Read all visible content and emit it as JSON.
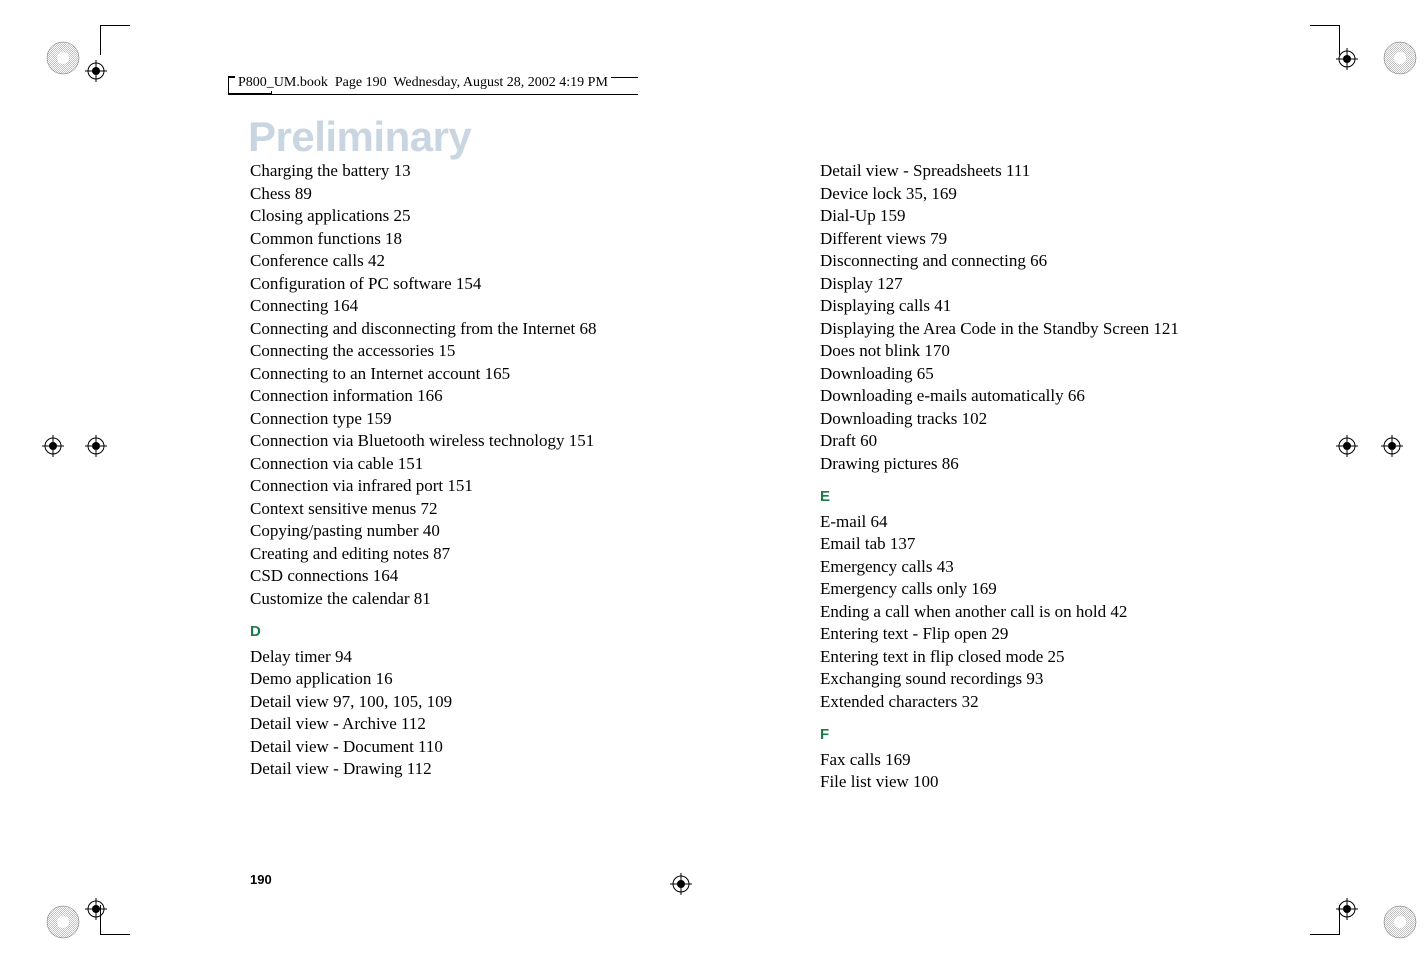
{
  "header": {
    "filename": "P800_UM.book",
    "page_info": "Page 190",
    "datetime": "Wednesday, August 28, 2002  4:19 PM"
  },
  "watermark": "Preliminary",
  "page_number": "190",
  "columns": {
    "left": {
      "entries_before_D": [
        {
          "label": "Charging the battery",
          "page": "13"
        },
        {
          "label": "Chess",
          "page": "89"
        },
        {
          "label": "Closing applications",
          "page": "25"
        },
        {
          "label": "Common functions",
          "page": "18"
        },
        {
          "label": "Conference calls",
          "page": "42"
        },
        {
          "label": "Configuration of PC software",
          "page": "154"
        },
        {
          "label": "Connecting",
          "page": "164"
        },
        {
          "label": "Connecting and disconnecting from the Internet",
          "page": "68"
        },
        {
          "label": "Connecting the accessories",
          "page": "15"
        },
        {
          "label": "Connecting to an Internet account",
          "page": "165"
        },
        {
          "label": "Connection information",
          "page": "166"
        },
        {
          "label": "Connection type",
          "page": "159"
        },
        {
          "label": "Connection via Bluetooth wireless technology",
          "page": "151"
        },
        {
          "label": "Connection via cable",
          "page": "151"
        },
        {
          "label": "Connection via infrared port",
          "page": "151"
        },
        {
          "label": "Context sensitive menus",
          "page": "72"
        },
        {
          "label": "Copying/pasting number",
          "page": "40"
        },
        {
          "label": "Creating and editing notes",
          "page": "87"
        },
        {
          "label": "CSD connections",
          "page": "164"
        },
        {
          "label": "Customize the calendar",
          "page": "81"
        }
      ],
      "section_D": "D",
      "entries_D": [
        {
          "label": "Delay timer",
          "page": "94"
        },
        {
          "label": "Demo application",
          "page": "16"
        },
        {
          "label": "Detail view",
          "page": "97, 100, 105, 109"
        },
        {
          "label": "Detail view - Archive",
          "page": "112"
        },
        {
          "label": "Detail view - Document",
          "page": "110"
        },
        {
          "label": "Detail view - Drawing",
          "page": "112"
        }
      ]
    },
    "right": {
      "entries_before_E": [
        {
          "label": "Detail view - Spreadsheets",
          "page": "111"
        },
        {
          "label": "Device lock",
          "page": "35, 169"
        },
        {
          "label": "Dial-Up",
          "page": "159"
        },
        {
          "label": "Different views",
          "page": "79"
        },
        {
          "label": "Disconnecting and connecting",
          "page": "66"
        },
        {
          "label": "Display",
          "page": "127"
        },
        {
          "label": "Displaying calls",
          "page": "41"
        },
        {
          "label": "Displaying the Area Code in the Standby Screen",
          "page": "121"
        },
        {
          "label": "Does not blink",
          "page": "170"
        },
        {
          "label": "Downloading",
          "page": "65"
        },
        {
          "label": "Downloading e-mails automatically",
          "page": "66"
        },
        {
          "label": "Downloading tracks",
          "page": "102"
        },
        {
          "label": "Draft",
          "page": "60"
        },
        {
          "label": "Drawing pictures",
          "page": "86"
        }
      ],
      "section_E": "E",
      "entries_E": [
        {
          "label": "E-mail",
          "page": "64"
        },
        {
          "label": "Email tab",
          "page": "137"
        },
        {
          "label": "Emergency calls",
          "page": "43"
        },
        {
          "label": "Emergency calls only",
          "page": "169"
        },
        {
          "label": "Ending a call when another call is on hold",
          "page": "42"
        },
        {
          "label": "Entering text - Flip open",
          "page": "29"
        },
        {
          "label": "Entering text in flip closed mode",
          "page": "25"
        },
        {
          "label": "Exchanging sound recordings",
          "page": "93"
        },
        {
          "label": "Extended characters",
          "page": "32"
        }
      ],
      "section_F": "F",
      "entries_F": [
        {
          "label": "Fax calls",
          "page": "169"
        },
        {
          "label": "File list view",
          "page": "100"
        }
      ]
    }
  }
}
